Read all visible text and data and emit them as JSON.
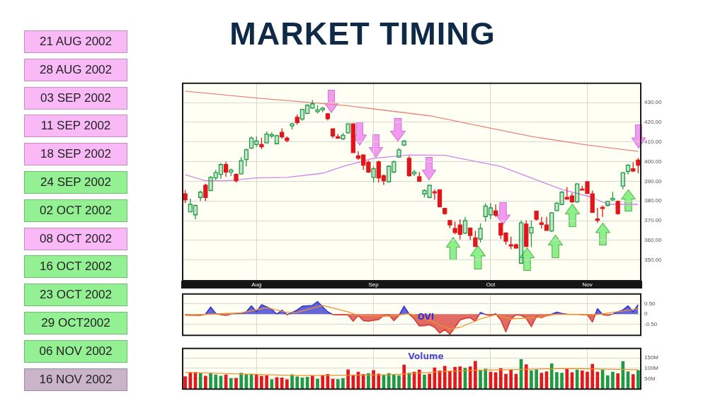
{
  "chart_data": [
    {
      "type": "other",
      "categories": [
        "21 AUG 2002",
        "28 AUG 2002",
        "03 SEP 2002",
        "11 SEP 2002",
        "18 SEP 2002",
        "24 SEP 2002",
        "02 OCT 2002",
        "08 OCT 2002",
        "16 OCT 2002",
        "23 OCT 2002",
        "29 OCT2002",
        "06 NOV 2002",
        "16 NOV 2002"
      ],
      "colors": [
        "#f9b8f6",
        "#f9b8f6",
        "#f9b8f6",
        "#f9b8f6",
        "#f9b8f6",
        "#93f093",
        "#93f093",
        "#f9b8f6",
        "#93f093",
        "#93f093",
        "#93f093",
        "#93f093",
        "#c9b4c9"
      ]
    },
    {
      "title": "MARKET TIMING",
      "type": "candlestick",
      "categories": [
        null,
        null,
        null,
        null,
        null,
        null,
        null,
        null,
        null,
        null,
        null,
        null,
        null,
        null,
        "Aug",
        null,
        null,
        null,
        null,
        null,
        null,
        null,
        null,
        null,
        null,
        null,
        null,
        null,
        null,
        null,
        null,
        null,
        null,
        null,
        null,
        null,
        null,
        "Sep",
        null,
        null,
        null,
        null,
        null,
        null,
        null,
        null,
        null,
        null,
        null,
        null,
        null,
        null,
        null,
        null,
        null,
        null,
        null,
        null,
        null,
        null,
        "Oct",
        null,
        null,
        null,
        null,
        null,
        null,
        null,
        null,
        null,
        null,
        null,
        null,
        null,
        null,
        null,
        null,
        null,
        null,
        "Nov",
        null,
        null,
        null,
        null,
        null,
        null,
        null,
        null,
        null,
        null
      ],
      "ohlc": [
        [
          383.6,
          385.7,
          378.9,
          380.6
        ],
        [
          374.5,
          381.2,
          374.5,
          378.3
        ],
        [
          373.0,
          378.3,
          370.7,
          377.7
        ],
        [
          381.8,
          385.3,
          380.0,
          384.5
        ],
        [
          388.0,
          388.8,
          380.0,
          381.8
        ],
        [
          385.3,
          392.7,
          385.0,
          392.0
        ],
        [
          391.7,
          395.8,
          390.6,
          394.4
        ],
        [
          393.5,
          399.3,
          391.2,
          398.5
        ],
        [
          398.5,
          399.9,
          392.3,
          394.7
        ],
        [
          394.7,
          396.4,
          392.7,
          395.8
        ],
        [
          393.5,
          394.1,
          389.4,
          390.3
        ],
        [
          393.8,
          402.3,
          393.5,
          400.5
        ],
        [
          401.1,
          406.7,
          397.6,
          406.0
        ],
        [
          406.9,
          412.8,
          406.4,
          412.0
        ],
        [
          408.7,
          412.8,
          407.5,
          410.5
        ],
        [
          408.7,
          412.2,
          406.4,
          407.5
        ],
        [
          409.5,
          415.4,
          409.3,
          414.0
        ],
        [
          413.0,
          414.9,
          411.9,
          413.7
        ],
        [
          409.1,
          413.7,
          409.1,
          413.2
        ],
        [
          414.9,
          416.9,
          411.6,
          412.6
        ],
        [
          411.9,
          412.8,
          409.9,
          410.7
        ],
        [
          418.1,
          419.8,
          416.3,
          419.2
        ],
        [
          422.5,
          423.9,
          418.7,
          419.8
        ],
        [
          421.6,
          426.8,
          420.8,
          426.6
        ],
        [
          424.5,
          429.2,
          424.1,
          428.6
        ],
        [
          427.2,
          431.3,
          426.8,
          429.4
        ],
        [
          425.4,
          428.6,
          424.5,
          426.3
        ],
        [
          426.3,
          427.8,
          425.1,
          427.2
        ],
        [
          424.3,
          424.7,
          421.0,
          421.8
        ],
        [
          416.7,
          416.9,
          411.9,
          413.0
        ],
        [
          412.6,
          414.0,
          411.6,
          411.9
        ],
        [
          411.6,
          414.6,
          411.0,
          413.4
        ],
        [
          414.6,
          419.5,
          414.2,
          419.2
        ],
        [
          419.2,
          419.5,
          404.6,
          404.6
        ],
        [
          402.9,
          405.2,
          400.9,
          401.7
        ],
        [
          403.4,
          403.7,
          395.8,
          398.2
        ],
        [
          399.7,
          400.5,
          394.3,
          394.7
        ],
        [
          392.0,
          397.6,
          389.4,
          396.4
        ],
        [
          399.9,
          400.5,
          389.4,
          391.7
        ],
        [
          392.9,
          393.5,
          388.2,
          390.3
        ],
        [
          389.8,
          398.2,
          389.4,
          397.6
        ],
        [
          394.7,
          400.5,
          394.1,
          399.9
        ],
        [
          402.3,
          406.9,
          402.0,
          406.0
        ],
        [
          408.4,
          411.0,
          407.9,
          410.5
        ],
        [
          401.7,
          402.9,
          392.3,
          392.9
        ],
        [
          393.8,
          395.8,
          392.7,
          394.7
        ],
        [
          392.3,
          394.7,
          389.6,
          390.0
        ],
        [
          383.6,
          385.9,
          381.8,
          385.3
        ],
        [
          381.8,
          388.2,
          381.4,
          388.0
        ],
        [
          384.7,
          385.9,
          380.6,
          384.1
        ],
        [
          385.7,
          385.9,
          376.8,
          377.1
        ],
        [
          376.3,
          376.5,
          373.0,
          373.6
        ],
        [
          370.1,
          370.3,
          366.2,
          367.8
        ],
        [
          366.0,
          369.5,
          363.1,
          364.0
        ],
        [
          367.8,
          370.7,
          360.4,
          363.1
        ],
        [
          363.7,
          371.9,
          363.1,
          370.1
        ],
        [
          366.2,
          366.6,
          360.2,
          362.5
        ],
        [
          361.3,
          364.8,
          356.6,
          356.9
        ],
        [
          360.7,
          368.6,
          358.9,
          366.0
        ],
        [
          372.1,
          378.9,
          369.5,
          377.4
        ],
        [
          373.0,
          378.9,
          370.7,
          376.5
        ],
        [
          375.0,
          378.3,
          371.9,
          372.8
        ],
        [
          368.6,
          368.9,
          360.7,
          362.7
        ],
        [
          363.7,
          364.2,
          357.8,
          359.6
        ],
        [
          357.8,
          361.9,
          355.5,
          357.2
        ],
        [
          357.8,
          358.4,
          355.8,
          356.1
        ],
        [
          348.4,
          370.1,
          347.9,
          368.9
        ],
        [
          368.3,
          370.1,
          356.6,
          356.9
        ],
        [
          363.7,
          370.1,
          356.6,
          366.6
        ],
        [
          374.8,
          375.0,
          370.1,
          370.7
        ],
        [
          368.9,
          371.9,
          366.0,
          368.1
        ],
        [
          367.8,
          371.9,
          364.8,
          365.1
        ],
        [
          364.8,
          374.4,
          364.2,
          374.0
        ],
        [
          375.1,
          379.5,
          374.8,
          378.9
        ],
        [
          378.3,
          385.0,
          377.9,
          384.5
        ],
        [
          381.8,
          387.1,
          380.6,
          381.0
        ],
        [
          382.6,
          384.1,
          379.1,
          379.5
        ],
        [
          379.5,
          389.1,
          379.1,
          388.7
        ],
        [
          386.1,
          387.6,
          385.3,
          385.7
        ],
        [
          389.8,
          390.0,
          383.6,
          383.8
        ],
        [
          383.6,
          385.3,
          374.0,
          374.2
        ],
        [
          370.9,
          376.5,
          368.9,
          370.2
        ],
        [
          376.8,
          377.7,
          371.9,
          376.2
        ],
        [
          377.7,
          380.0,
          377.1,
          379.8
        ],
        [
          380.6,
          384.7,
          380.0,
          381.4
        ],
        [
          379.8,
          380.3,
          373.0,
          373.6
        ],
        [
          387.6,
          394.7,
          385.9,
          394.3
        ],
        [
          395.0,
          398.8,
          393.5,
          398.2
        ],
        [
          396.4,
          399.7,
          394.7,
          395.2
        ],
        [
          400.8,
          401.9,
          394.1,
          398.2
        ]
      ],
      "colors": [
        "#e0161b",
        "#1f9a48",
        "#1f9a48",
        "#1f9a48",
        "#e0161b",
        "#1f9a48",
        "#1f9a48",
        "#1f9a48",
        "#e0161b",
        "#1f9a48",
        "#e0161b",
        "#1f9a48",
        "#1f9a48",
        "#1f9a48",
        "#1f9a48",
        "#e0161b",
        "#1f9a48",
        "#1f9a48",
        "#1f9a48",
        "#e0161b",
        "#e0161b",
        "#1f9a48",
        "#e0161b",
        "#1f9a48",
        "#1f9a48",
        "#1f9a48",
        "#1f9a48",
        "#1f9a48",
        "#e0161b",
        "#e0161b",
        "#e0161b",
        "#1f9a48",
        "#1f9a48",
        "#e0161b",
        "#e0161b",
        "#e0161b",
        "#e0161b",
        "#1f9a48",
        "#e0161b",
        "#e0161b",
        "#1f9a48",
        "#1f9a48",
        "#1f9a48",
        "#1f9a48",
        "#e0161b",
        "#1f9a48",
        "#e0161b",
        "#1f9a48",
        "#1f9a48",
        "#e0161b",
        "#e0161b",
        "#e0161b",
        "#e0161b",
        "#e0161b",
        "#e0161b",
        "#1f9a48",
        "#e0161b",
        "#e0161b",
        "#1f9a48",
        "#1f9a48",
        "#1f9a48",
        "#e0161b",
        "#e0161b",
        "#e0161b",
        "#e0161b",
        "#e0161b",
        "#1f9a48",
        "#e0161b",
        "#1f9a48",
        "#e0161b",
        "#e0161b",
        "#e0161b",
        "#1f9a48",
        "#1f9a48",
        "#1f9a48",
        "#e0161b",
        "#e0161b",
        "#1f9a48",
        "#e0161b",
        "#e0161b",
        "#e0161b",
        "#e0161b",
        "#e0161b",
        "#1f9a48",
        "#1f9a48",
        "#e0161b",
        "#1f9a48",
        "#1f9a48",
        "#e0161b",
        "#e0161b"
      ],
      "series": [
        {
          "type": "line",
          "color": "#e8877d",
          "values": [
            435.8,
            null,
            null,
            null,
            null,
            null,
            null,
            null,
            null,
            null,
            null,
            null,
            null,
            null,
            432.3,
            null,
            null,
            null,
            null,
            null,
            null,
            null,
            null,
            null,
            null,
            null,
            null,
            null,
            null,
            null,
            null,
            428.6,
            null,
            null,
            null,
            null,
            null,
            426.8,
            null,
            null,
            null,
            null,
            null,
            null,
            null,
            null,
            null,
            null,
            423.3,
            null,
            null,
            null,
            null,
            null,
            null,
            null,
            null,
            null,
            null,
            417.5,
            null,
            null,
            null,
            null,
            null,
            null,
            null,
            null,
            412.8,
            null,
            null,
            null,
            null,
            null,
            null,
            null,
            null,
            null,
            null,
            408.4,
            null,
            null,
            null,
            null,
            null,
            null,
            null,
            null,
            null,
            405.2
          ]
        },
        {
          "type": "line",
          "color": "#d584ea",
          "values": [
            393.3,
            null,
            null,
            null,
            390.3,
            null,
            null,
            null,
            390.3,
            null,
            null,
            null,
            null,
            null,
            391.7,
            null,
            null,
            null,
            null,
            null,
            392.0,
            null,
            null,
            null,
            null,
            null,
            null,
            394.1,
            null,
            null,
            null,
            397.6,
            null,
            null,
            null,
            null,
            null,
            401.7,
            null,
            null,
            null,
            null,
            null,
            null,
            403.4,
            null,
            null,
            null,
            null,
            null,
            null,
            403.2,
            null,
            null,
            null,
            null,
            null,
            null,
            null,
            null,
            null,
            null,
            397.6,
            null,
            null,
            null,
            null,
            null,
            391.7,
            null,
            null,
            null,
            null,
            null,
            385.9,
            null,
            null,
            null,
            null,
            null,
            381.8,
            null,
            null,
            378.3,
            null,
            null,
            null,
            null,
            null,
            378.3
          ]
        }
      ],
      "ylim": [
        339.5,
        439.8
      ],
      "yticks": [
        {
          "value": 350,
          "label": "350.00"
        },
        {
          "value": 360,
          "label": "360.00"
        },
        {
          "value": 370,
          "label": "370.00"
        },
        {
          "value": 380,
          "label": "380.00"
        },
        {
          "value": 390,
          "label": "390.00"
        },
        {
          "value": 400,
          "label": "400.00"
        },
        {
          "value": 410,
          "label": "410.00"
        },
        {
          "value": 420,
          "label": "420.00"
        },
        {
          "value": 430,
          "label": "430.00"
        }
      ],
      "grid": true
    },
    {
      "type": "area",
      "categories": [
        null,
        null,
        null,
        null,
        null,
        null,
        null,
        null,
        null,
        null,
        null,
        null,
        null,
        null,
        null,
        null,
        null,
        null,
        null,
        null,
        null,
        null,
        null,
        null,
        null,
        null,
        null,
        null,
        null,
        null,
        null,
        null,
        null,
        null,
        null,
        null,
        null,
        null,
        null,
        null,
        null,
        null,
        null,
        null,
        null,
        null,
        null,
        null,
        null,
        null,
        null,
        null,
        null,
        null,
        null,
        null,
        null,
        null,
        null,
        null,
        null,
        null,
        null,
        null,
        null,
        null,
        null,
        null,
        null,
        null,
        null,
        null,
        null,
        null,
        null,
        null,
        null,
        null,
        null,
        null,
        null,
        null,
        null,
        null,
        null,
        null,
        null,
        null,
        null,
        null
      ],
      "series": [
        {
          "name": "OVI",
          "type": "area",
          "color": "#3434d0",
          "values": [
            null,
            null,
            null,
            null,
            0,
            0.34,
            0.03,
            -0.02,
            null,
            0,
            0.02,
            0.05,
            0.11,
            0.4,
            0.11,
            0.45,
            0.35,
            0.23,
            0,
            0.19,
            -0.03,
            0.08,
            0.2,
            0.38,
            0.4,
            0.42,
            0.6,
            0.35,
            0.11,
            -0.02,
            null,
            null,
            null,
            null,
            null,
            null,
            null,
            null,
            null,
            null,
            null,
            null,
            -0.06,
            0.38,
            0,
            null,
            null,
            null,
            null,
            null,
            null,
            null,
            null,
            null,
            null,
            null,
            null,
            -0.34,
            0.08,
            -0.02,
            -0.06,
            0.02,
            -0.28,
            null,
            null,
            null,
            null,
            null,
            null,
            null,
            null,
            null,
            0,
            0.09,
            0.03,
            0,
            null,
            null,
            null,
            null,
            -0.38,
            0.26,
            -0.02,
            null,
            0,
            0.11,
            0.2,
            0.4,
            0.11,
            0.45
          ]
        },
        {
          "type": "area",
          "color": "#d83a34",
          "values": [
            -0.03,
            -0.05,
            -0.06,
            -0.06,
            0,
            null,
            0.03,
            -0.02,
            -0.06,
            0,
            null,
            null,
            null,
            null,
            null,
            null,
            null,
            null,
            0,
            0.19,
            -0.03,
            0.08,
            null,
            null,
            null,
            null,
            null,
            null,
            0.11,
            -0.02,
            -0.03,
            -0.02,
            -0.03,
            -0.34,
            -0.06,
            -0.31,
            -0.34,
            -0.3,
            -0.26,
            -0.06,
            -0.03,
            -0.31,
            -0.06,
            0.38,
            0,
            -0.23,
            -0.57,
            -0.55,
            -0.51,
            -0.63,
            -0.91,
            -0.74,
            -0.97,
            -0.63,
            -0.28,
            -0.2,
            -0.17,
            -0.34,
            0.08,
            -0.02,
            -0.06,
            0.02,
            -0.28,
            -0.85,
            -0.23,
            -0.03,
            -0.06,
            -0.2,
            -0.6,
            -0.11,
            -0.17,
            -0.08,
            0,
            null,
            null,
            0,
            -0.01,
            -0.01,
            -0.02,
            -0.02,
            -0.38,
            0.26,
            -0.02,
            -0.06,
            0,
            null,
            null,
            null,
            null,
            null
          ]
        },
        {
          "type": "line",
          "color": "#f0922b",
          "values": [
            -0.06,
            null,
            null,
            null,
            null,
            0,
            null,
            null,
            null,
            null,
            null,
            0.06,
            null,
            null,
            null,
            null,
            0.31,
            null,
            null,
            null,
            0.08,
            null,
            0.08,
            null,
            null,
            null,
            null,
            0.42,
            null,
            null,
            null,
            null,
            0.11,
            null,
            -0.06,
            null,
            null,
            null,
            null,
            null,
            -0.11,
            null,
            null,
            null,
            0.03,
            null,
            null,
            null,
            null,
            -0.4,
            null,
            null,
            -0.72,
            null,
            -0.63,
            null,
            null,
            null,
            -0.23,
            null,
            null,
            -0.03,
            null,
            null,
            -0.23,
            null,
            null,
            null,
            null,
            -0.17,
            null,
            null,
            null,
            0,
            null,
            null,
            null,
            null,
            null,
            null,
            null,
            -0.02,
            null,
            null,
            null,
            null,
            null,
            null,
            null,
            0.26
          ]
        }
      ],
      "ylim": [
        -1.02,
        0.97
      ],
      "yticks": [
        {
          "value": -0.5,
          "label": "-0.50"
        },
        0,
        {
          "value": 0.5,
          "label": "0.50"
        }
      ],
      "grid": true,
      "tick_labels": "y"
    },
    {
      "type": "bar",
      "categories": [
        null,
        null,
        null,
        null,
        null,
        null,
        null,
        null,
        null,
        null,
        null,
        null,
        null,
        null,
        null,
        null,
        null,
        null,
        null,
        null,
        null,
        null,
        null,
        null,
        null,
        null,
        null,
        null,
        null,
        null,
        null,
        null,
        null,
        null,
        null,
        null,
        null,
        null,
        null,
        null,
        null,
        null,
        null,
        null,
        null,
        null,
        null,
        null,
        null,
        null,
        null,
        null,
        null,
        null,
        null,
        null,
        null,
        null,
        null,
        null,
        null,
        null,
        null,
        null,
        null,
        null,
        null,
        null,
        null,
        null,
        null,
        null,
        null,
        null,
        null,
        null,
        null,
        null,
        null,
        null,
        null,
        null,
        null,
        null,
        null,
        null,
        null,
        null,
        null,
        null
      ],
      "series": [
        {
          "name": "Volume",
          "type": "bar",
          "values": [
            60,
            80,
            80,
            74,
            62,
            74,
            68,
            62,
            68,
            51,
            52,
            77,
            70,
            72,
            68,
            62,
            65,
            45,
            56,
            54,
            45,
            69,
            59,
            54,
            57,
            63,
            48,
            65,
            71,
            48,
            46,
            51,
            93,
            65,
            82,
            71,
            75,
            90,
            73,
            68,
            75,
            71,
            65,
            116,
            77,
            82,
            92,
            68,
            73,
            102,
            88,
            110,
            86,
            105,
            107,
            101,
            107,
            134,
            89,
            96,
            82,
            79,
            99,
            72,
            91,
            72,
            142,
            118,
            89,
            93,
            77,
            84,
            122,
            80,
            77,
            98,
            79,
            92,
            88,
            82,
            119,
            82,
            92,
            65,
            82,
            74,
            133,
            84,
            70,
            90
          ],
          "colors": [
            "#e3171c",
            "#e3171c",
            "#e3171c",
            "#1e9a46",
            "#e3171c",
            "#1e9a46",
            "#1e9a46",
            "#1e9a46",
            "#e3171c",
            "#1e9a46",
            "#e3171c",
            "#1e9a46",
            "#1e9a46",
            "#1e9a46",
            "#e3171c",
            "#e3171c",
            "#e3171c",
            "#1e9a46",
            "#e3171c",
            "#e3171c",
            "#e3171c",
            "#1e9a46",
            "#1e9a46",
            "#1e9a46",
            "#1e9a46",
            "#e3171c",
            "#1e9a46",
            "#e3171c",
            "#e3171c",
            "#e3171c",
            "#1e9a46",
            "#1e9a46",
            "#e3171c",
            "#e3171c",
            "#e3171c",
            "#e3171c",
            "#1e9a46",
            "#e3171c",
            "#e3171c",
            "#1e9a46",
            "#1e9a46",
            "#1e9a46",
            "#1e9a46",
            "#e3171c",
            "#1e9a46",
            "#e3171c",
            "#e3171c",
            "#1e9a46",
            "#e3171c",
            "#e3171c",
            "#e3171c",
            "#e3171c",
            "#e3171c",
            "#e3171c",
            "#e3171c",
            "#1e9a46",
            "#e3171c",
            "#e3171c",
            "#1e9a46",
            "#1e9a46",
            "#e3171c",
            "#e3171c",
            "#e3171c",
            "#e3171c",
            "#e3171c",
            "#e3171c",
            "#1e9a46",
            "#e3171c",
            "#1e9a46",
            "#1e9a46",
            "#e3171c",
            "#e3171c",
            "#1e9a46",
            "#1e9a46",
            "#1e9a46",
            "#e3171c",
            "#e3171c",
            "#1e9a46",
            "#e3171c",
            "#e3171c",
            "#e3171c",
            "#e3171c",
            "#1e9a46",
            "#1e9a46",
            "#1e9a46",
            "#e3171c",
            "#1e9a46",
            "#1e9a46",
            "#e3171c",
            "#1e9a46"
          ]
        },
        {
          "type": "line",
          "color": "#f0922b",
          "values": [
            80,
            null,
            null,
            null,
            null,
            null,
            null,
            null,
            null,
            null,
            null,
            null,
            null,
            null,
            null,
            null,
            null,
            null,
            null,
            null,
            null,
            null,
            65,
            null,
            null,
            null,
            null,
            null,
            null,
            null,
            null,
            null,
            null,
            null,
            null,
            null,
            null,
            null,
            null,
            null,
            68,
            null,
            null,
            null,
            null,
            null,
            null,
            null,
            null,
            null,
            null,
            null,
            86,
            null,
            null,
            null,
            null,
            null,
            90,
            null,
            null,
            null,
            null,
            null,
            null,
            null,
            null,
            null,
            null,
            null,
            null,
            null,
            null,
            null,
            null,
            99,
            null,
            null,
            null,
            null,
            null,
            null,
            null,
            null,
            null,
            null,
            null,
            null,
            null,
            93
          ]
        }
      ],
      "ylim": [
        0,
        195
      ],
      "yticks": [
        {
          "value": 50,
          "label": "50M"
        },
        {
          "value": 100,
          "label": "100M"
        },
        {
          "value": 150,
          "label": "150M"
        }
      ],
      "grid": true,
      "tick_labels": "y"
    }
  ]
}
